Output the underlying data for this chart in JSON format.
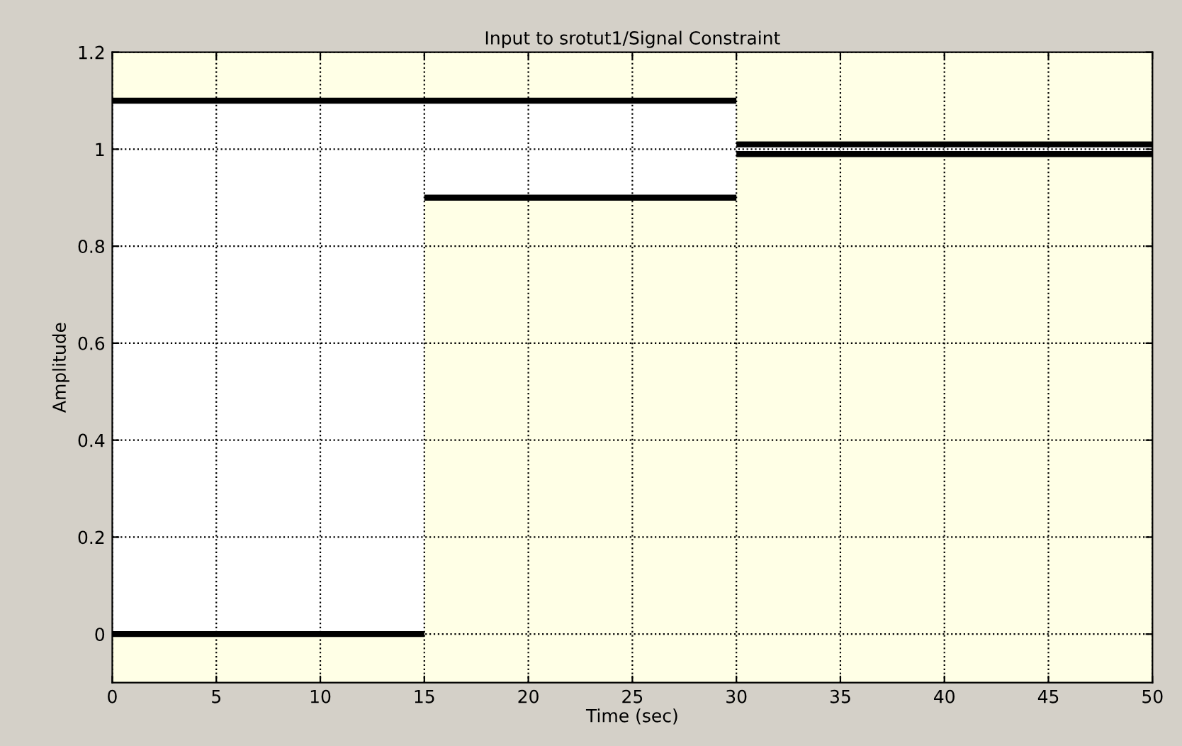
{
  "chart_data": {
    "type": "line",
    "title": "Input to srotut1/Signal Constraint",
    "xlabel": "Time (sec)",
    "ylabel": "Amplitude",
    "series": [
      {
        "color": "#000000",
        "x": [
          0,
          30,
          null,
          30,
          50
        ],
        "values": [
          1.1,
          1.1,
          null,
          1.01,
          1.01
        ]
      },
      {
        "color": "#000000",
        "x": [
          0,
          15,
          null,
          15,
          30,
          null,
          30,
          50
        ],
        "values": [
          0,
          0,
          null,
          0.9,
          0.9,
          null,
          0.99,
          0.99
        ]
      }
    ],
    "xlim": [
      0,
      50
    ],
    "ylim": [
      -0.1,
      1.2
    ],
    "xticks": [
      0,
      5,
      10,
      15,
      20,
      25,
      30,
      35,
      40,
      45,
      50
    ],
    "yticks": [
      0,
      0.2,
      0.4,
      0.6,
      0.8,
      1,
      1.2
    ],
    "grid": true,
    "line_style": "solid"
  }
}
